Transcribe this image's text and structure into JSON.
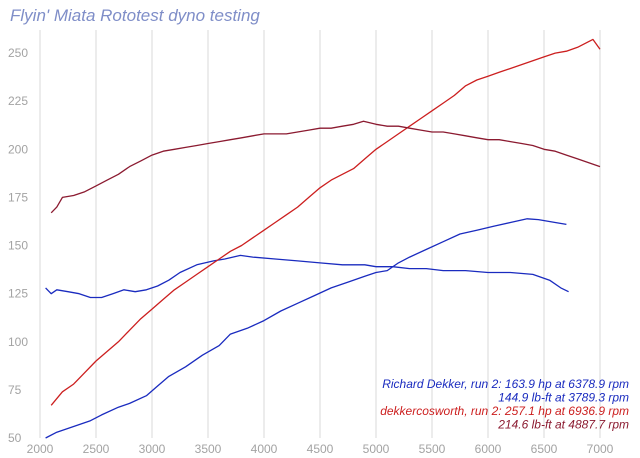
{
  "chart_data": {
    "type": "line",
    "title": "Flyin' Miata Rototest dyno testing",
    "xlabel": "",
    "ylabel": "",
    "xlim": [
      2000,
      7000
    ],
    "ylim": [
      50,
      262
    ],
    "x_ticks": [
      "2000",
      "2500",
      "3000",
      "3500",
      "4000",
      "4500",
      "5000",
      "5500",
      "6000",
      "6500",
      "7000"
    ],
    "y_ticks": [
      "50",
      "75",
      "100",
      "125",
      "150",
      "175",
      "200",
      "225",
      "250"
    ],
    "grid": "vertical",
    "legend_position": "bottom-right",
    "series": [
      {
        "key": "dekker_hp",
        "color": "#1a2bbf",
        "points": [
          [
            2050,
            50
          ],
          [
            2150,
            53
          ],
          [
            2300,
            56
          ],
          [
            2450,
            59
          ],
          [
            2550,
            62
          ],
          [
            2700,
            66
          ],
          [
            2800,
            68
          ],
          [
            2950,
            72
          ],
          [
            3050,
            77
          ],
          [
            3150,
            82
          ],
          [
            3300,
            87
          ],
          [
            3450,
            93
          ],
          [
            3600,
            98
          ],
          [
            3700,
            104
          ],
          [
            3850,
            107
          ],
          [
            4000,
            111
          ],
          [
            4150,
            116
          ],
          [
            4300,
            120
          ],
          [
            4450,
            124
          ],
          [
            4600,
            128
          ],
          [
            4750,
            131
          ],
          [
            4900,
            134
          ],
          [
            5000,
            136
          ],
          [
            5100,
            137
          ],
          [
            5200,
            141
          ],
          [
            5300,
            144
          ],
          [
            5450,
            148
          ],
          [
            5600,
            152
          ],
          [
            5750,
            156
          ],
          [
            5900,
            158
          ],
          [
            6050,
            160
          ],
          [
            6200,
            162
          ],
          [
            6350,
            163.9
          ],
          [
            6450,
            163.5
          ],
          [
            6600,
            162
          ],
          [
            6700,
            161
          ]
        ]
      },
      {
        "key": "dekker_tq",
        "color": "#1a2bbf",
        "points": [
          [
            2050,
            128
          ],
          [
            2100,
            125
          ],
          [
            2150,
            127
          ],
          [
            2250,
            126
          ],
          [
            2350,
            125
          ],
          [
            2450,
            123
          ],
          [
            2550,
            123
          ],
          [
            2650,
            125
          ],
          [
            2750,
            127
          ],
          [
            2850,
            126
          ],
          [
            2950,
            127
          ],
          [
            3050,
            129
          ],
          [
            3150,
            132
          ],
          [
            3250,
            136
          ],
          [
            3400,
            140
          ],
          [
            3550,
            142
          ],
          [
            3650,
            143
          ],
          [
            3789,
            144.9
          ],
          [
            3900,
            144
          ],
          [
            4100,
            143
          ],
          [
            4300,
            142
          ],
          [
            4500,
            141
          ],
          [
            4700,
            140
          ],
          [
            4900,
            140
          ],
          [
            5000,
            139
          ],
          [
            5150,
            139
          ],
          [
            5300,
            138
          ],
          [
            5450,
            138
          ],
          [
            5600,
            137
          ],
          [
            5800,
            137
          ],
          [
            6000,
            136
          ],
          [
            6200,
            136
          ],
          [
            6400,
            135
          ],
          [
            6550,
            132
          ],
          [
            6650,
            128
          ],
          [
            6720,
            126
          ]
        ]
      },
      {
        "key": "cosworth_hp",
        "color": "#cc1f1f",
        "points": [
          [
            2100,
            67
          ],
          [
            2200,
            74
          ],
          [
            2300,
            78
          ],
          [
            2400,
            84
          ],
          [
            2500,
            90
          ],
          [
            2600,
            95
          ],
          [
            2700,
            100
          ],
          [
            2800,
            106
          ],
          [
            2900,
            112
          ],
          [
            3000,
            117
          ],
          [
            3100,
            122
          ],
          [
            3200,
            127
          ],
          [
            3300,
            131
          ],
          [
            3400,
            135
          ],
          [
            3500,
            139
          ],
          [
            3600,
            143
          ],
          [
            3700,
            147
          ],
          [
            3800,
            150
          ],
          [
            3900,
            154
          ],
          [
            4000,
            158
          ],
          [
            4100,
            162
          ],
          [
            4200,
            166
          ],
          [
            4300,
            170
          ],
          [
            4400,
            175
          ],
          [
            4500,
            180
          ],
          [
            4600,
            184
          ],
          [
            4700,
            187
          ],
          [
            4800,
            190
          ],
          [
            4900,
            195
          ],
          [
            5000,
            200
          ],
          [
            5100,
            204
          ],
          [
            5200,
            208
          ],
          [
            5300,
            212
          ],
          [
            5400,
            216
          ],
          [
            5500,
            220
          ],
          [
            5600,
            224
          ],
          [
            5700,
            228
          ],
          [
            5800,
            233
          ],
          [
            5900,
            236
          ],
          [
            6000,
            238
          ],
          [
            6100,
            240
          ],
          [
            6200,
            242
          ],
          [
            6300,
            244
          ],
          [
            6400,
            246
          ],
          [
            6500,
            248
          ],
          [
            6600,
            250
          ],
          [
            6700,
            251
          ],
          [
            6800,
            253
          ],
          [
            6937,
            257.1
          ],
          [
            7000,
            252
          ]
        ]
      },
      {
        "key": "cosworth_tq",
        "color": "#8b1a30",
        "points": [
          [
            2100,
            167
          ],
          [
            2150,
            170
          ],
          [
            2200,
            175
          ],
          [
            2300,
            176
          ],
          [
            2400,
            178
          ],
          [
            2500,
            181
          ],
          [
            2600,
            184
          ],
          [
            2700,
            187
          ],
          [
            2800,
            191
          ],
          [
            2900,
            194
          ],
          [
            3000,
            197
          ],
          [
            3100,
            199
          ],
          [
            3200,
            200
          ],
          [
            3300,
            201
          ],
          [
            3400,
            202
          ],
          [
            3500,
            203
          ],
          [
            3600,
            204
          ],
          [
            3700,
            205
          ],
          [
            3800,
            206
          ],
          [
            3900,
            207
          ],
          [
            4000,
            208
          ],
          [
            4100,
            208
          ],
          [
            4200,
            208
          ],
          [
            4300,
            209
          ],
          [
            4400,
            210
          ],
          [
            4500,
            211
          ],
          [
            4600,
            211
          ],
          [
            4700,
            212
          ],
          [
            4800,
            213
          ],
          [
            4888,
            214.6
          ],
          [
            5000,
            213
          ],
          [
            5100,
            212
          ],
          [
            5200,
            212
          ],
          [
            5300,
            211
          ],
          [
            5400,
            210
          ],
          [
            5500,
            209
          ],
          [
            5600,
            209
          ],
          [
            5700,
            208
          ],
          [
            5800,
            207
          ],
          [
            5900,
            206
          ],
          [
            6000,
            205
          ],
          [
            6100,
            205
          ],
          [
            6200,
            204
          ],
          [
            6300,
            203
          ],
          [
            6400,
            202
          ],
          [
            6500,
            200
          ],
          [
            6600,
            199
          ],
          [
            6700,
            197
          ],
          [
            6800,
            195
          ],
          [
            6900,
            193
          ],
          [
            7000,
            191
          ]
        ]
      }
    ],
    "legend": [
      {
        "text": "Richard Dekker, run 2: 163.9 hp at 6378.9 rpm",
        "color": "#1a2bbf"
      },
      {
        "text": "144.9 lb-ft at 3789.3 rpm",
        "color": "#1a2bbf"
      },
      {
        "text": "dekkercosworth, run 2: 257.1 hp at 6936.9 rpm",
        "color": "#cc1f1f"
      },
      {
        "text": "214.6 lb-ft at 4887.7 rpm",
        "color": "#8b1a30"
      }
    ]
  }
}
